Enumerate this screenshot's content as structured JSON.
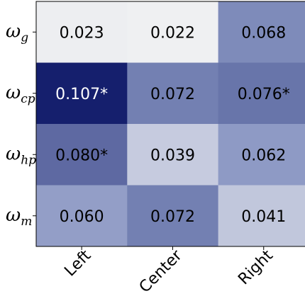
{
  "chart_data": {
    "type": "heatmap",
    "title": "",
    "xlabel": "",
    "ylabel": "",
    "columns": [
      "Left",
      "Center",
      "Right"
    ],
    "rows": [
      {
        "label": "ω",
        "subscript": "g"
      },
      {
        "label": "ω",
        "subscript": "cp"
      },
      {
        "label": "ω",
        "subscript": "hp"
      },
      {
        "label": "ω",
        "subscript": "m"
      }
    ],
    "values": [
      [
        0.023,
        0.022,
        0.068
      ],
      [
        0.107,
        0.072,
        0.076
      ],
      [
        0.08,
        0.039,
        0.062
      ],
      [
        0.06,
        0.072,
        0.041
      ]
    ],
    "cell_labels": [
      [
        "0.023",
        "0.022",
        "0.068"
      ],
      [
        "0.107*",
        "0.072",
        "0.076*"
      ],
      [
        "0.080*",
        "0.039",
        "0.062"
      ],
      [
        "0.060",
        "0.072",
        "0.041"
      ]
    ],
    "colormap": {
      "low": "#f4f4f4",
      "mid": "#8a97c3",
      "high": "#151f6d"
    },
    "value_range": [
      0.02,
      0.107
    ]
  }
}
